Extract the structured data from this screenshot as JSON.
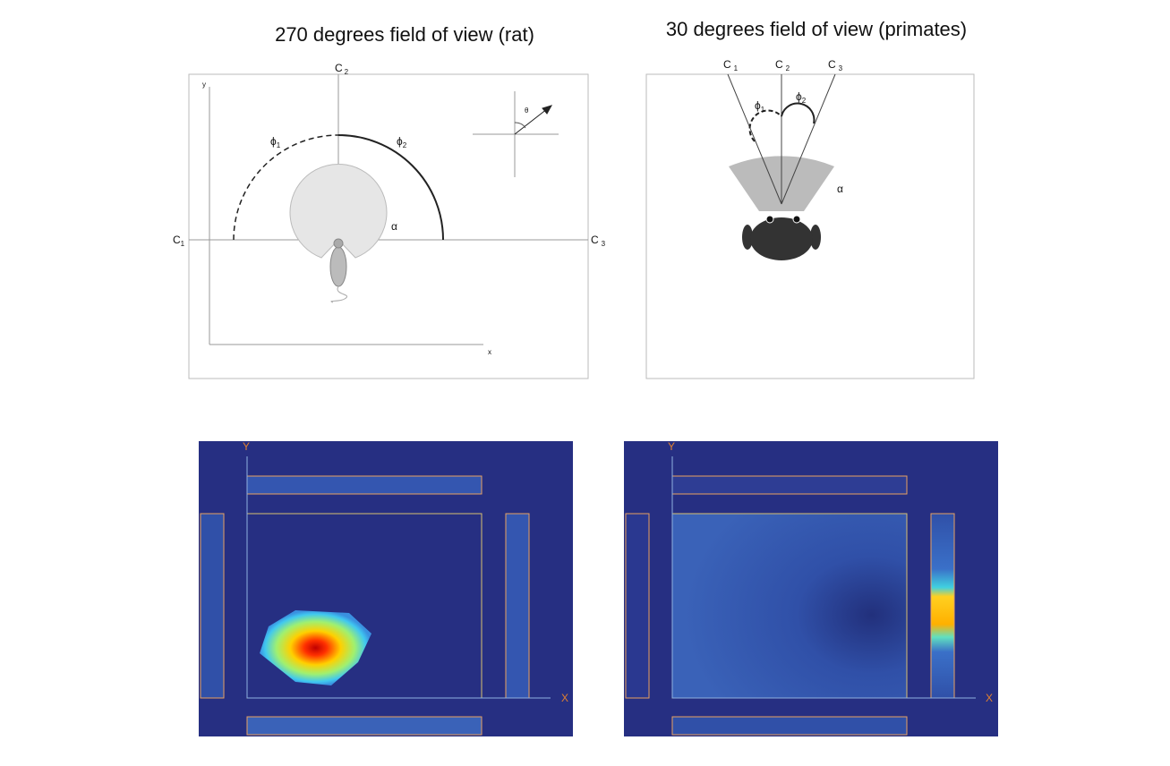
{
  "rat": {
    "title": "270 degrees field of view (rat)",
    "c1": {
      "letter": "C",
      "sub": "1"
    },
    "c2": {
      "letter": "C",
      "sub": "2"
    },
    "c3": {
      "letter": "C",
      "sub": "3"
    },
    "phi1": {
      "letter": "ϕ",
      "sub": "1"
    },
    "phi2": {
      "letter": "ϕ",
      "sub": "2"
    },
    "alpha": "α",
    "theta": "θ",
    "x_axis": "x",
    "y_axis": "y"
  },
  "primate": {
    "title": "30 degrees field of view (primates)",
    "c1": {
      "letter": "C",
      "sub": "1"
    },
    "c2": {
      "letter": "C",
      "sub": "2"
    },
    "c3": {
      "letter": "C",
      "sub": "3"
    },
    "phi1": {
      "letter": "ϕ",
      "sub": "1"
    },
    "phi2": {
      "letter": "ϕ",
      "sub": "2"
    },
    "alpha": "α"
  },
  "maps": [
    {
      "x_axis": "X",
      "y_axis": "Y"
    },
    {
      "x_axis": "X",
      "y_axis": "Y"
    }
  ]
}
